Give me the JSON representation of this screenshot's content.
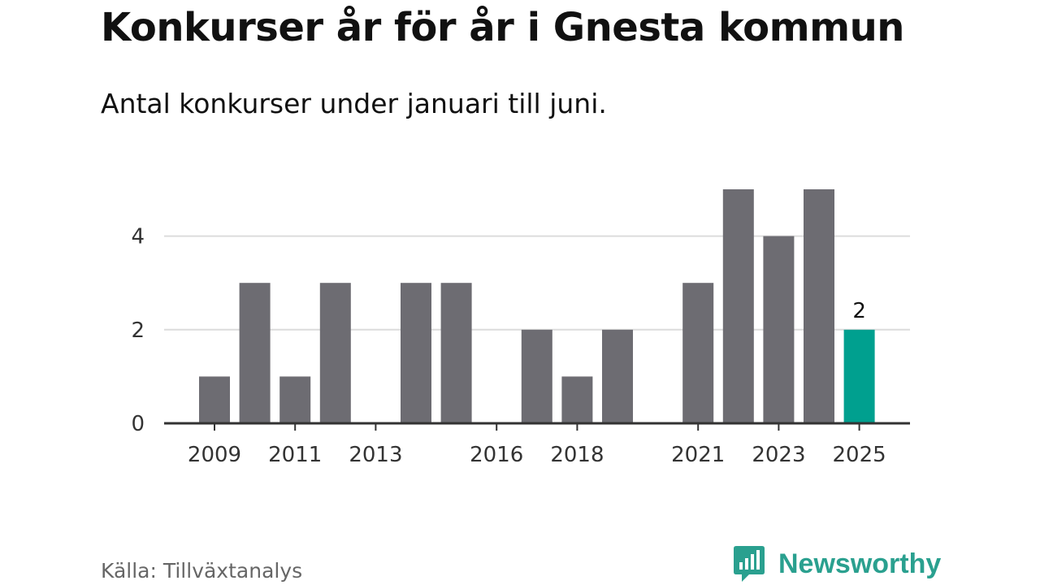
{
  "title": "Konkurser år för år i Gnesta kommun",
  "subtitle": "Antal konkurser under januari till juni.",
  "source": "Källa: Tillväxtanalys",
  "logo": {
    "text": "Newsworthy",
    "icon": "newsworthy-chat-bars-icon"
  },
  "colors": {
    "bar": "#6d6c72",
    "highlight": "#00a08f",
    "grid": "#dcdcdc",
    "axis": "#333333",
    "brand": "#2aa08f"
  },
  "chart_data": {
    "type": "bar",
    "categories": [
      "2009",
      "2010",
      "2011",
      "2012",
      "2013",
      "2014",
      "2015",
      "2016",
      "2017",
      "2018",
      "2019",
      "2020",
      "2021",
      "2022",
      "2023",
      "2024",
      "2025"
    ],
    "values": [
      1,
      3,
      1,
      3,
      0,
      3,
      3,
      0,
      2,
      1,
      2,
      0,
      3,
      5,
      4,
      5,
      2
    ],
    "x_tick_labels": [
      "2009",
      "2011",
      "2013",
      "2016",
      "2018",
      "2021",
      "2023",
      "2025"
    ],
    "y_ticks": [
      0,
      2,
      4
    ],
    "ylim": [
      0,
      5
    ],
    "highlight_category": "2025",
    "highlight_label": "2",
    "title": "Konkurser år för år i Gnesta kommun",
    "subtitle": "Antal konkurser under januari till juni.",
    "grid": true
  }
}
